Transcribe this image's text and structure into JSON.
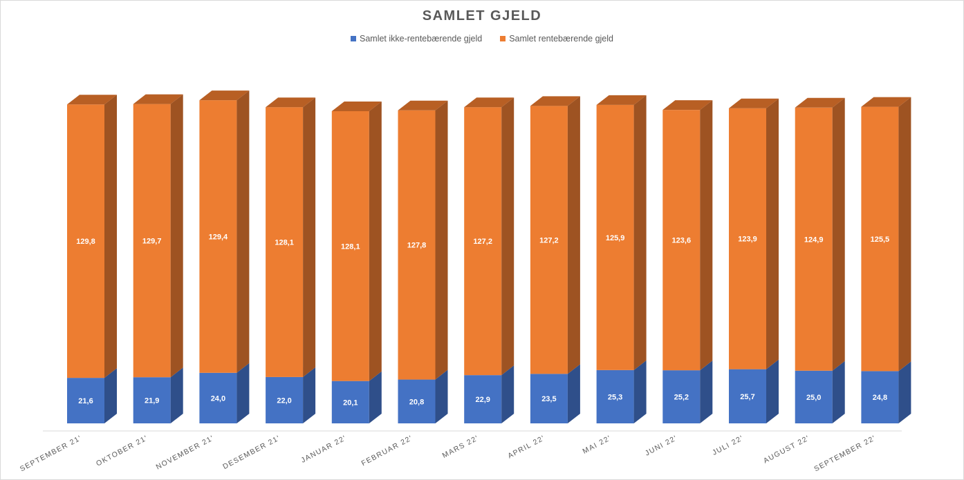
{
  "chart_data": {
    "type": "bar",
    "stacked": true,
    "three_d": true,
    "title": "SAMLET GJELD",
    "xlabel": "",
    "ylabel": "",
    "legend_position": "top",
    "grid": false,
    "categories": [
      "SEPTEMBER 21'",
      "OKTOBER 21'",
      "NOVEMBER 21'",
      "DESEMBER 21'",
      "JANUAR 22'",
      "FEBRUAR 22'",
      "MARS 22'",
      "APRIL 22'",
      "MAI 22'",
      "JUNI 22'",
      "JULI 22'",
      "AUGUST 22'",
      "SEPTEMBER 22'"
    ],
    "series": [
      {
        "name": "Samlet ikke-rentebærende gjeld",
        "color": "#4472c4",
        "side_color": "#2f4f8a",
        "values": [
          21.6,
          21.9,
          24.0,
          22.0,
          20.1,
          20.8,
          22.9,
          23.5,
          25.3,
          25.2,
          25.7,
          25.0,
          24.8
        ],
        "labels": [
          "21,6",
          "21,9",
          "24,0",
          "22,0",
          "20,1",
          "20,8",
          "22,9",
          "23,5",
          "25,3",
          "25,2",
          "25,7",
          "25,0",
          "24,8"
        ]
      },
      {
        "name": "Samlet rentebærende gjeld",
        "color": "#ed7d31",
        "side_color": "#9e5322",
        "top_color": "#b85f24",
        "values": [
          129.8,
          129.7,
          129.4,
          128.1,
          128.1,
          127.8,
          127.2,
          127.2,
          125.9,
          123.6,
          123.9,
          124.9,
          125.5
        ],
        "labels": [
          "129,8",
          "129,7",
          "129,4",
          "128,1",
          "128,1",
          "127,8",
          "127,2",
          "127,2",
          "125,9",
          "123,6",
          "123,9",
          "124,9",
          "125,5"
        ]
      }
    ]
  }
}
